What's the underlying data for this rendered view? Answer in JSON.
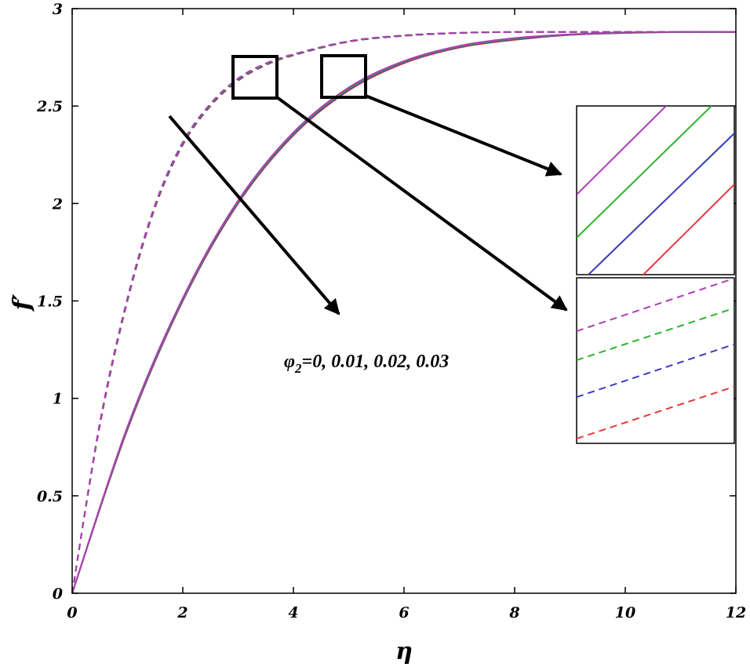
{
  "chart_data": {
    "type": "line",
    "xlabel": "η",
    "ylabel": "f′",
    "xlim": [
      0,
      12
    ],
    "ylim": [
      0,
      3
    ],
    "x_ticks": [
      "0",
      "2",
      "4",
      "6",
      "8",
      "10",
      "12"
    ],
    "y_ticks": [
      "0",
      "0.5",
      "1",
      "1.5",
      "2",
      "2.5",
      "3"
    ],
    "grid": false,
    "legend": "none",
    "annotation": {
      "symbol": "φ",
      "subscript": "2",
      "rest": "=0, 0.01, 0.02, 0.03"
    },
    "series": [
      {
        "group": "solid",
        "color": "#e23b3b",
        "dash": "none",
        "phi2": 0,
        "x": [
          0,
          1,
          2,
          3,
          4,
          5,
          6,
          7,
          8,
          9,
          10,
          11,
          12
        ],
        "y": [
          0,
          0.84,
          1.5,
          2.0,
          2.35,
          2.58,
          2.72,
          2.8,
          2.84,
          2.865,
          2.875,
          2.88,
          2.88
        ]
      },
      {
        "group": "solid",
        "color": "#3b3bbf",
        "dash": "none",
        "phi2": 0.01,
        "x": [
          0,
          1,
          2,
          3,
          4,
          5,
          6,
          7,
          8,
          9,
          10,
          11,
          12
        ],
        "y": [
          0,
          0.845,
          1.505,
          2.005,
          2.355,
          2.585,
          2.725,
          2.803,
          2.843,
          2.866,
          2.876,
          2.88,
          2.88
        ]
      },
      {
        "group": "solid",
        "color": "#2bb52b",
        "dash": "none",
        "phi2": 0.02,
        "x": [
          0,
          1,
          2,
          3,
          4,
          5,
          6,
          7,
          8,
          9,
          10,
          11,
          12
        ],
        "y": [
          0,
          0.85,
          1.51,
          2.01,
          2.36,
          2.59,
          2.728,
          2.806,
          2.846,
          2.867,
          2.877,
          2.88,
          2.88
        ]
      },
      {
        "group": "solid",
        "color": "#b03ab8",
        "dash": "none",
        "phi2": 0.03,
        "x": [
          0,
          1,
          2,
          3,
          4,
          5,
          6,
          7,
          8,
          9,
          10,
          11,
          12
        ],
        "y": [
          0,
          0.855,
          1.515,
          2.015,
          2.365,
          2.595,
          2.731,
          2.809,
          2.849,
          2.868,
          2.878,
          2.88,
          2.88
        ]
      },
      {
        "group": "dashed",
        "color": "#e23b3b",
        "dash": "8 6",
        "phi2": 0,
        "x": [
          0,
          0.5,
          1,
          1.5,
          2,
          2.5,
          3,
          3.5,
          4,
          5,
          6,
          7,
          8,
          10,
          12
        ],
        "y": [
          0,
          0.86,
          1.5,
          1.98,
          2.3,
          2.5,
          2.63,
          2.71,
          2.76,
          2.83,
          2.86,
          2.875,
          2.88,
          2.88,
          2.88
        ]
      },
      {
        "group": "dashed",
        "color": "#3b3bbf",
        "dash": "8 6",
        "phi2": 0.01,
        "x": [
          0,
          0.5,
          1,
          1.5,
          2,
          2.5,
          3,
          3.5,
          4,
          5,
          6,
          7,
          8,
          10,
          12
        ],
        "y": [
          0,
          0.865,
          1.505,
          1.985,
          2.305,
          2.504,
          2.634,
          2.713,
          2.762,
          2.831,
          2.861,
          2.875,
          2.88,
          2.88,
          2.88
        ]
      },
      {
        "group": "dashed",
        "color": "#2bb52b",
        "dash": "8 6",
        "phi2": 0.02,
        "x": [
          0,
          0.5,
          1,
          1.5,
          2,
          2.5,
          3,
          3.5,
          4,
          5,
          6,
          7,
          8,
          10,
          12
        ],
        "y": [
          0,
          0.87,
          1.51,
          1.99,
          2.31,
          2.508,
          2.638,
          2.716,
          2.764,
          2.832,
          2.862,
          2.876,
          2.88,
          2.88,
          2.88
        ]
      },
      {
        "group": "dashed",
        "color": "#b03ab8",
        "dash": "8 6",
        "phi2": 0.03,
        "x": [
          0,
          0.5,
          1,
          1.5,
          2,
          2.5,
          3,
          3.5,
          4,
          5,
          6,
          7,
          8,
          10,
          12
        ],
        "y": [
          0,
          0.875,
          1.515,
          1.995,
          2.315,
          2.512,
          2.642,
          2.719,
          2.766,
          2.833,
          2.863,
          2.876,
          2.88,
          2.88,
          2.88
        ]
      }
    ],
    "zoom_boxes": [
      {
        "name": "dashed-curves-zoom",
        "x_range": [
          2.9,
          3.7
        ],
        "y_range": [
          2.55,
          2.75
        ]
      },
      {
        "name": "solid-curves-zoom",
        "x_range": [
          4.5,
          5.3
        ],
        "y_range": [
          2.55,
          2.75
        ]
      }
    ]
  }
}
